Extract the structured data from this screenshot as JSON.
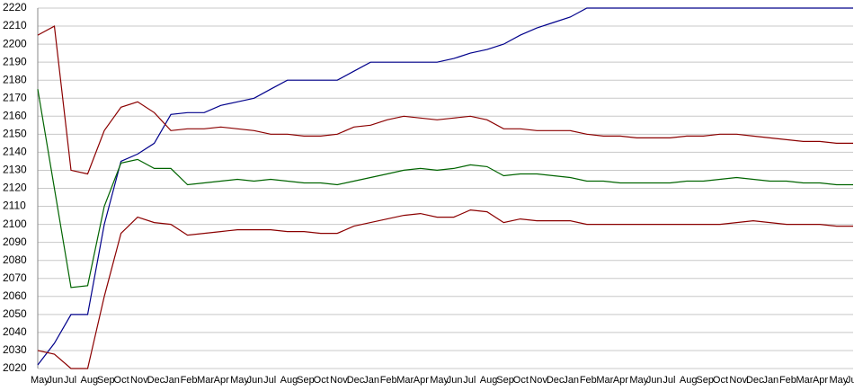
{
  "chart_data": {
    "type": "line",
    "categories": [
      "May",
      "Jun",
      "Jul",
      "Aug",
      "Sep",
      "Oct",
      "Nov",
      "Dec",
      "Jan",
      "Feb",
      "Mar",
      "Apr",
      "May",
      "Jun",
      "Jul",
      "Aug",
      "Sep",
      "Oct",
      "Nov",
      "Dec",
      "Jan",
      "Feb",
      "Mar",
      "Apr",
      "May",
      "Jun",
      "Jul",
      "Aug",
      "Sep",
      "Oct",
      "Nov",
      "Dec",
      "Jan",
      "Feb",
      "Mar",
      "Apr",
      "May",
      "Jun",
      "Jul",
      "Aug",
      "Sep",
      "Oct",
      "Nov",
      "Dec",
      "Jan",
      "Feb",
      "Mar",
      "Apr",
      "May",
      "Jun"
    ],
    "series": [
      {
        "color": "#00008b",
        "values": [
          2022,
          2034,
          2050,
          2050,
          2100,
          2135,
          2139,
          2145,
          2161,
          2162,
          2162,
          2166,
          2168,
          2170,
          2175,
          2180,
          2180,
          2180,
          2180,
          2185,
          2190,
          2190,
          2190,
          2190,
          2190,
          2192,
          2195,
          2197,
          2200,
          2205,
          2209,
          2212,
          2215,
          2220,
          2220,
          2220,
          2220,
          2220,
          2220,
          2220,
          2220,
          2220,
          2220,
          2220,
          2220,
          2220,
          2220,
          2220,
          2220,
          2220
        ]
      },
      {
        "color": "#8b0000",
        "values": [
          2205,
          2210,
          2130,
          2128,
          2152,
          2165,
          2168,
          2162,
          2152,
          2153,
          2153,
          2154,
          2153,
          2152,
          2150,
          2150,
          2149,
          2149,
          2150,
          2154,
          2155,
          2158,
          2160,
          2159,
          2158,
          2159,
          2160,
          2158,
          2153,
          2153,
          2152,
          2152,
          2152,
          2150,
          2149,
          2149,
          2148,
          2148,
          2148,
          2149,
          2149,
          2150,
          2150,
          2149,
          2148,
          2147,
          2146,
          2146,
          2145,
          2145
        ]
      },
      {
        "color": "#006400",
        "values": [
          2175,
          2120,
          2065,
          2066,
          2110,
          2134,
          2136,
          2131,
          2131,
          2122,
          2123,
          2124,
          2125,
          2124,
          2125,
          2124,
          2123,
          2123,
          2122,
          2124,
          2126,
          2128,
          2130,
          2131,
          2130,
          2131,
          2133,
          2132,
          2127,
          2128,
          2128,
          2127,
          2126,
          2124,
          2124,
          2123,
          2123,
          2123,
          2123,
          2124,
          2124,
          2125,
          2126,
          2125,
          2124,
          2124,
          2123,
          2123,
          2122,
          2122
        ]
      },
      {
        "color": "#8b0000",
        "values": [
          2030,
          2028,
          2020,
          2020,
          2060,
          2095,
          2104,
          2101,
          2100,
          2094,
          2095,
          2096,
          2097,
          2097,
          2097,
          2096,
          2096,
          2095,
          2095,
          2099,
          2101,
          2103,
          2105,
          2106,
          2104,
          2104,
          2108,
          2107,
          2101,
          2103,
          2102,
          2102,
          2102,
          2100,
          2100,
          2100,
          2100,
          2100,
          2100,
          2100,
          2100,
          2100,
          2101,
          2102,
          2101,
          2100,
          2100,
          2100,
          2099,
          2099
        ]
      }
    ],
    "ylim": [
      2020,
      2220
    ],
    "yticks": [
      2020,
      2030,
      2040,
      2050,
      2060,
      2070,
      2080,
      2090,
      2100,
      2110,
      2120,
      2130,
      2140,
      2150,
      2160,
      2170,
      2180,
      2190,
      2200,
      2210,
      2220
    ],
    "grid": true
  }
}
